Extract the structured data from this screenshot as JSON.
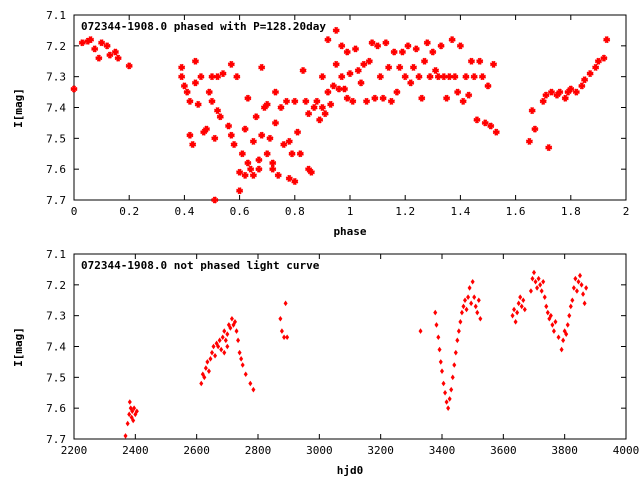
{
  "chart_data": [
    {
      "type": "scatter",
      "title": "072344-1908.0 phased with P=128.20day",
      "xlabel": "phase",
      "ylabel": "I[mag]",
      "xlim": [
        0,
        2
      ],
      "ylim": [
        7.1,
        7.7
      ],
      "y_inverted": true,
      "grid": false,
      "marker": "star",
      "color": "#ff0000",
      "x_ticks": [
        "0",
        "0.2",
        "0.4",
        "0.6",
        "0.8",
        "1",
        "1.2",
        "1.4",
        "1.6",
        "1.8",
        "2"
      ],
      "y_ticks": [
        "7.1",
        "7.2",
        "7.3",
        "7.4",
        "7.5",
        "7.6",
        "7.7"
      ],
      "points": [
        [
          0.0,
          7.34
        ],
        [
          0.03,
          7.19
        ],
        [
          0.05,
          7.185
        ],
        [
          0.06,
          7.18
        ],
        [
          0.075,
          7.21
        ],
        [
          0.09,
          7.24
        ],
        [
          0.1,
          7.19
        ],
        [
          0.12,
          7.2
        ],
        [
          0.13,
          7.23
        ],
        [
          0.15,
          7.22
        ],
        [
          0.16,
          7.24
        ],
        [
          0.2,
          7.265
        ],
        [
          0.39,
          7.27
        ],
        [
          0.39,
          7.3
        ],
        [
          0.4,
          7.33
        ],
        [
          0.41,
          7.35
        ],
        [
          0.42,
          7.38
        ],
        [
          0.42,
          7.49
        ],
        [
          0.43,
          7.52
        ],
        [
          0.44,
          7.32
        ],
        [
          0.44,
          7.25
        ],
        [
          0.45,
          7.39
        ],
        [
          0.46,
          7.3
        ],
        [
          0.47,
          7.48
        ],
        [
          0.48,
          7.47
        ],
        [
          0.49,
          7.35
        ],
        [
          0.5,
          7.3
        ],
        [
          0.5,
          7.38
        ],
        [
          0.51,
          7.5
        ],
        [
          0.51,
          7.7
        ],
        [
          0.52,
          7.3
        ],
        [
          0.52,
          7.41
        ],
        [
          0.53,
          7.43
        ],
        [
          0.54,
          7.29
        ],
        [
          0.56,
          7.46
        ],
        [
          0.57,
          7.49
        ],
        [
          0.57,
          7.26
        ],
        [
          0.58,
          7.52
        ],
        [
          0.59,
          7.3
        ],
        [
          0.6,
          7.67
        ],
        [
          0.6,
          7.61
        ],
        [
          0.61,
          7.55
        ],
        [
          0.62,
          7.62
        ],
        [
          0.62,
          7.47
        ],
        [
          0.63,
          7.58
        ],
        [
          0.63,
          7.37
        ],
        [
          0.64,
          7.6
        ],
        [
          0.65,
          7.62
        ],
        [
          0.65,
          7.51
        ],
        [
          0.66,
          7.43
        ],
        [
          0.67,
          7.57
        ],
        [
          0.67,
          7.6
        ],
        [
          0.68,
          7.49
        ],
        [
          0.68,
          7.27
        ],
        [
          0.69,
          7.4
        ],
        [
          0.7,
          7.55
        ],
        [
          0.7,
          7.39
        ],
        [
          0.71,
          7.5
        ],
        [
          0.72,
          7.58
        ],
        [
          0.72,
          7.6
        ],
        [
          0.73,
          7.45
        ],
        [
          0.73,
          7.35
        ],
        [
          0.74,
          7.62
        ],
        [
          0.75,
          7.4
        ],
        [
          0.76,
          7.52
        ],
        [
          0.77,
          7.38
        ],
        [
          0.78,
          7.63
        ],
        [
          0.78,
          7.51
        ],
        [
          0.79,
          7.55
        ],
        [
          0.8,
          7.38
        ],
        [
          0.8,
          7.64
        ],
        [
          0.81,
          7.48
        ],
        [
          0.82,
          7.55
        ],
        [
          0.83,
          7.28
        ],
        [
          0.84,
          7.38
        ],
        [
          0.85,
          7.42
        ],
        [
          0.85,
          7.6
        ],
        [
          0.86,
          7.61
        ],
        [
          0.87,
          7.4
        ],
        [
          0.88,
          7.38
        ],
        [
          0.89,
          7.44
        ],
        [
          0.9,
          7.4
        ],
        [
          0.9,
          7.3
        ],
        [
          0.91,
          7.42
        ],
        [
          0.92,
          7.35
        ],
        [
          0.92,
          7.18
        ],
        [
          0.93,
          7.39
        ],
        [
          0.94,
          7.33
        ],
        [
          0.95,
          7.26
        ],
        [
          0.95,
          7.15
        ],
        [
          0.96,
          7.34
        ],
        [
          0.97,
          7.3
        ],
        [
          0.97,
          7.2
        ],
        [
          0.98,
          7.34
        ],
        [
          0.99,
          7.22
        ],
        [
          0.99,
          7.37
        ],
        [
          1.0,
          7.29
        ],
        [
          1.01,
          7.38
        ],
        [
          1.02,
          7.21
        ],
        [
          1.03,
          7.28
        ],
        [
          1.04,
          7.32
        ],
        [
          1.05,
          7.26
        ],
        [
          1.06,
          7.38
        ],
        [
          1.07,
          7.25
        ],
        [
          1.08,
          7.19
        ],
        [
          1.09,
          7.37
        ],
        [
          1.1,
          7.2
        ],
        [
          1.11,
          7.3
        ],
        [
          1.12,
          7.37
        ],
        [
          1.13,
          7.19
        ],
        [
          1.14,
          7.27
        ],
        [
          1.15,
          7.38
        ],
        [
          1.16,
          7.22
        ],
        [
          1.17,
          7.35
        ],
        [
          1.18,
          7.27
        ],
        [
          1.19,
          7.22
        ],
        [
          1.2,
          7.3
        ],
        [
          1.21,
          7.2
        ],
        [
          1.22,
          7.32
        ],
        [
          1.23,
          7.27
        ],
        [
          1.24,
          7.21
        ],
        [
          1.25,
          7.3
        ],
        [
          1.26,
          7.37
        ],
        [
          1.27,
          7.25
        ],
        [
          1.28,
          7.19
        ],
        [
          1.29,
          7.3
        ],
        [
          1.3,
          7.22
        ],
        [
          1.31,
          7.28
        ],
        [
          1.32,
          7.3
        ],
        [
          1.33,
          7.2
        ],
        [
          1.34,
          7.3
        ],
        [
          1.35,
          7.37
        ],
        [
          1.36,
          7.3
        ],
        [
          1.37,
          7.18
        ],
        [
          1.38,
          7.3
        ],
        [
          1.39,
          7.35
        ],
        [
          1.4,
          7.2
        ],
        [
          1.41,
          7.38
        ],
        [
          1.42,
          7.3
        ],
        [
          1.43,
          7.36
        ],
        [
          1.44,
          7.25
        ],
        [
          1.45,
          7.3
        ],
        [
          1.46,
          7.44
        ],
        [
          1.47,
          7.25
        ],
        [
          1.48,
          7.3
        ],
        [
          1.49,
          7.45
        ],
        [
          1.5,
          7.33
        ],
        [
          1.51,
          7.46
        ],
        [
          1.52,
          7.26
        ],
        [
          1.53,
          7.48
        ],
        [
          1.65,
          7.51
        ],
        [
          1.66,
          7.41
        ],
        [
          1.67,
          7.47
        ],
        [
          1.7,
          7.38
        ],
        [
          1.71,
          7.36
        ],
        [
          1.72,
          7.53
        ],
        [
          1.73,
          7.35
        ],
        [
          1.75,
          7.36
        ],
        [
          1.76,
          7.35
        ],
        [
          1.78,
          7.37
        ],
        [
          1.79,
          7.35
        ],
        [
          1.8,
          7.34
        ],
        [
          1.82,
          7.35
        ],
        [
          1.84,
          7.33
        ],
        [
          1.85,
          7.31
        ],
        [
          1.87,
          7.29
        ],
        [
          1.89,
          7.27
        ],
        [
          1.9,
          7.25
        ],
        [
          1.92,
          7.24
        ],
        [
          1.93,
          7.18
        ]
      ]
    },
    {
      "type": "scatter",
      "title": "072344-1908.0 not phased light curve",
      "xlabel": "hjd0",
      "ylabel": "I[mag]",
      "xlim": [
        2200,
        4000
      ],
      "ylim": [
        7.1,
        7.7
      ],
      "y_inverted": true,
      "grid": false,
      "marker": "diamond",
      "color": "#ff0000",
      "x_ticks": [
        "2200",
        "2400",
        "2600",
        "2800",
        "3000",
        "3200",
        "3400",
        "3600",
        "3800",
        "4000"
      ],
      "y_ticks": [
        "7.1",
        "7.2",
        "7.3",
        "7.4",
        "7.5",
        "7.6",
        "7.7"
      ],
      "points": [
        [
          2368,
          7.69
        ],
        [
          2375,
          7.65
        ],
        [
          2380,
          7.62
        ],
        [
          2382,
          7.58
        ],
        [
          2385,
          7.6
        ],
        [
          2388,
          7.63
        ],
        [
          2390,
          7.61
        ],
        [
          2393,
          7.64
        ],
        [
          2396,
          7.6
        ],
        [
          2400,
          7.62
        ],
        [
          2405,
          7.61
        ],
        [
          2615,
          7.52
        ],
        [
          2620,
          7.49
        ],
        [
          2625,
          7.5
        ],
        [
          2630,
          7.47
        ],
        [
          2635,
          7.45
        ],
        [
          2640,
          7.48
        ],
        [
          2645,
          7.44
        ],
        [
          2650,
          7.42
        ],
        [
          2655,
          7.4
        ],
        [
          2660,
          7.43
        ],
        [
          2665,
          7.39
        ],
        [
          2670,
          7.4
        ],
        [
          2675,
          7.38
        ],
        [
          2680,
          7.41
        ],
        [
          2685,
          7.37
        ],
        [
          2690,
          7.35
        ],
        [
          2695,
          7.38
        ],
        [
          2700,
          7.36
        ],
        [
          2705,
          7.33
        ],
        [
          2710,
          7.34
        ],
        [
          2715,
          7.31
        ],
        [
          2720,
          7.33
        ],
        [
          2725,
          7.32
        ],
        [
          2730,
          7.35
        ],
        [
          2735,
          7.38
        ],
        [
          2740,
          7.42
        ],
        [
          2745,
          7.44
        ],
        [
          2750,
          7.46
        ],
        [
          2760,
          7.49
        ],
        [
          2775,
          7.52
        ],
        [
          2785,
          7.54
        ],
        [
          2700,
          7.4
        ],
        [
          2690,
          7.42
        ],
        [
          2873,
          7.31
        ],
        [
          2878,
          7.35
        ],
        [
          2885,
          7.37
        ],
        [
          2890,
          7.26
        ],
        [
          2895,
          7.37
        ],
        [
          3330,
          7.35
        ],
        [
          3378,
          7.29
        ],
        [
          3382,
          7.33
        ],
        [
          3388,
          7.37
        ],
        [
          3392,
          7.41
        ],
        [
          3396,
          7.45
        ],
        [
          3400,
          7.48
        ],
        [
          3405,
          7.52
        ],
        [
          3410,
          7.55
        ],
        [
          3415,
          7.58
        ],
        [
          3420,
          7.6
        ],
        [
          3425,
          7.57
        ],
        [
          3430,
          7.54
        ],
        [
          3435,
          7.5
        ],
        [
          3440,
          7.46
        ],
        [
          3445,
          7.42
        ],
        [
          3450,
          7.38
        ],
        [
          3455,
          7.35
        ],
        [
          3460,
          7.32
        ],
        [
          3465,
          7.29
        ],
        [
          3470,
          7.27
        ],
        [
          3475,
          7.25
        ],
        [
          3480,
          7.28
        ],
        [
          3485,
          7.24
        ],
        [
          3490,
          7.21
        ],
        [
          3495,
          7.26
        ],
        [
          3500,
          7.19
        ],
        [
          3505,
          7.24
        ],
        [
          3510,
          7.27
        ],
        [
          3515,
          7.29
        ],
        [
          3520,
          7.25
        ],
        [
          3525,
          7.31
        ],
        [
          3630,
          7.3
        ],
        [
          3635,
          7.28
        ],
        [
          3640,
          7.32
        ],
        [
          3645,
          7.29
        ],
        [
          3650,
          7.26
        ],
        [
          3655,
          7.24
        ],
        [
          3660,
          7.27
        ],
        [
          3665,
          7.25
        ],
        [
          3670,
          7.28
        ],
        [
          3690,
          7.22
        ],
        [
          3695,
          7.18
        ],
        [
          3700,
          7.16
        ],
        [
          3705,
          7.19
        ],
        [
          3710,
          7.21
        ],
        [
          3715,
          7.18
        ],
        [
          3720,
          7.2
        ],
        [
          3725,
          7.22
        ],
        [
          3730,
          7.19
        ],
        [
          3735,
          7.24
        ],
        [
          3740,
          7.27
        ],
        [
          3745,
          7.29
        ],
        [
          3750,
          7.31
        ],
        [
          3755,
          7.3
        ],
        [
          3760,
          7.33
        ],
        [
          3765,
          7.35
        ],
        [
          3770,
          7.32
        ],
        [
          3780,
          7.37
        ],
        [
          3790,
          7.41
        ],
        [
          3795,
          7.38
        ],
        [
          3800,
          7.35
        ],
        [
          3805,
          7.36
        ],
        [
          3810,
          7.33
        ],
        [
          3815,
          7.3
        ],
        [
          3820,
          7.27
        ],
        [
          3825,
          7.25
        ],
        [
          3830,
          7.21
        ],
        [
          3835,
          7.18
        ],
        [
          3840,
          7.22
        ],
        [
          3845,
          7.19
        ],
        [
          3850,
          7.17
        ],
        [
          3855,
          7.2
        ],
        [
          3860,
          7.23
        ],
        [
          3865,
          7.26
        ],
        [
          3870,
          7.21
        ]
      ]
    }
  ]
}
